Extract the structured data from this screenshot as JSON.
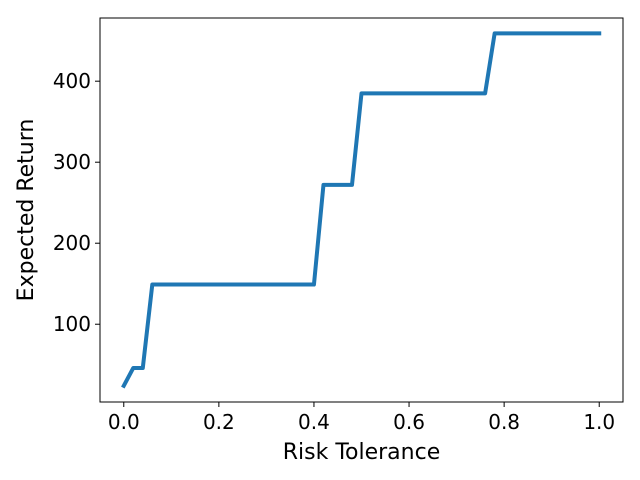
{
  "chart_data": {
    "type": "line",
    "title": "",
    "xlabel": "Risk Tolerance",
    "ylabel": "Expected Return",
    "xlim": [
      -0.05,
      1.05
    ],
    "ylim": [
      4,
      478
    ],
    "x_ticks": [
      0.0,
      0.2,
      0.4,
      0.6,
      0.8,
      1.0
    ],
    "x_tick_labels": [
      "0.0",
      "0.2",
      "0.4",
      "0.6",
      "0.8",
      "1.0"
    ],
    "y_ticks": [
      100,
      200,
      300,
      400
    ],
    "y_tick_labels": [
      "100",
      "200",
      "300",
      "400"
    ],
    "grid": false,
    "legend": "none",
    "series": [
      {
        "color": "#1f77b4",
        "x": [
          0.0,
          0.02,
          0.04,
          0.06,
          0.4,
          0.42,
          0.48,
          0.5,
          0.76,
          0.78,
          1.0
        ],
        "y": [
          24,
          46,
          46,
          149,
          149,
          272,
          272,
          385,
          385,
          459,
          459
        ]
      }
    ]
  }
}
